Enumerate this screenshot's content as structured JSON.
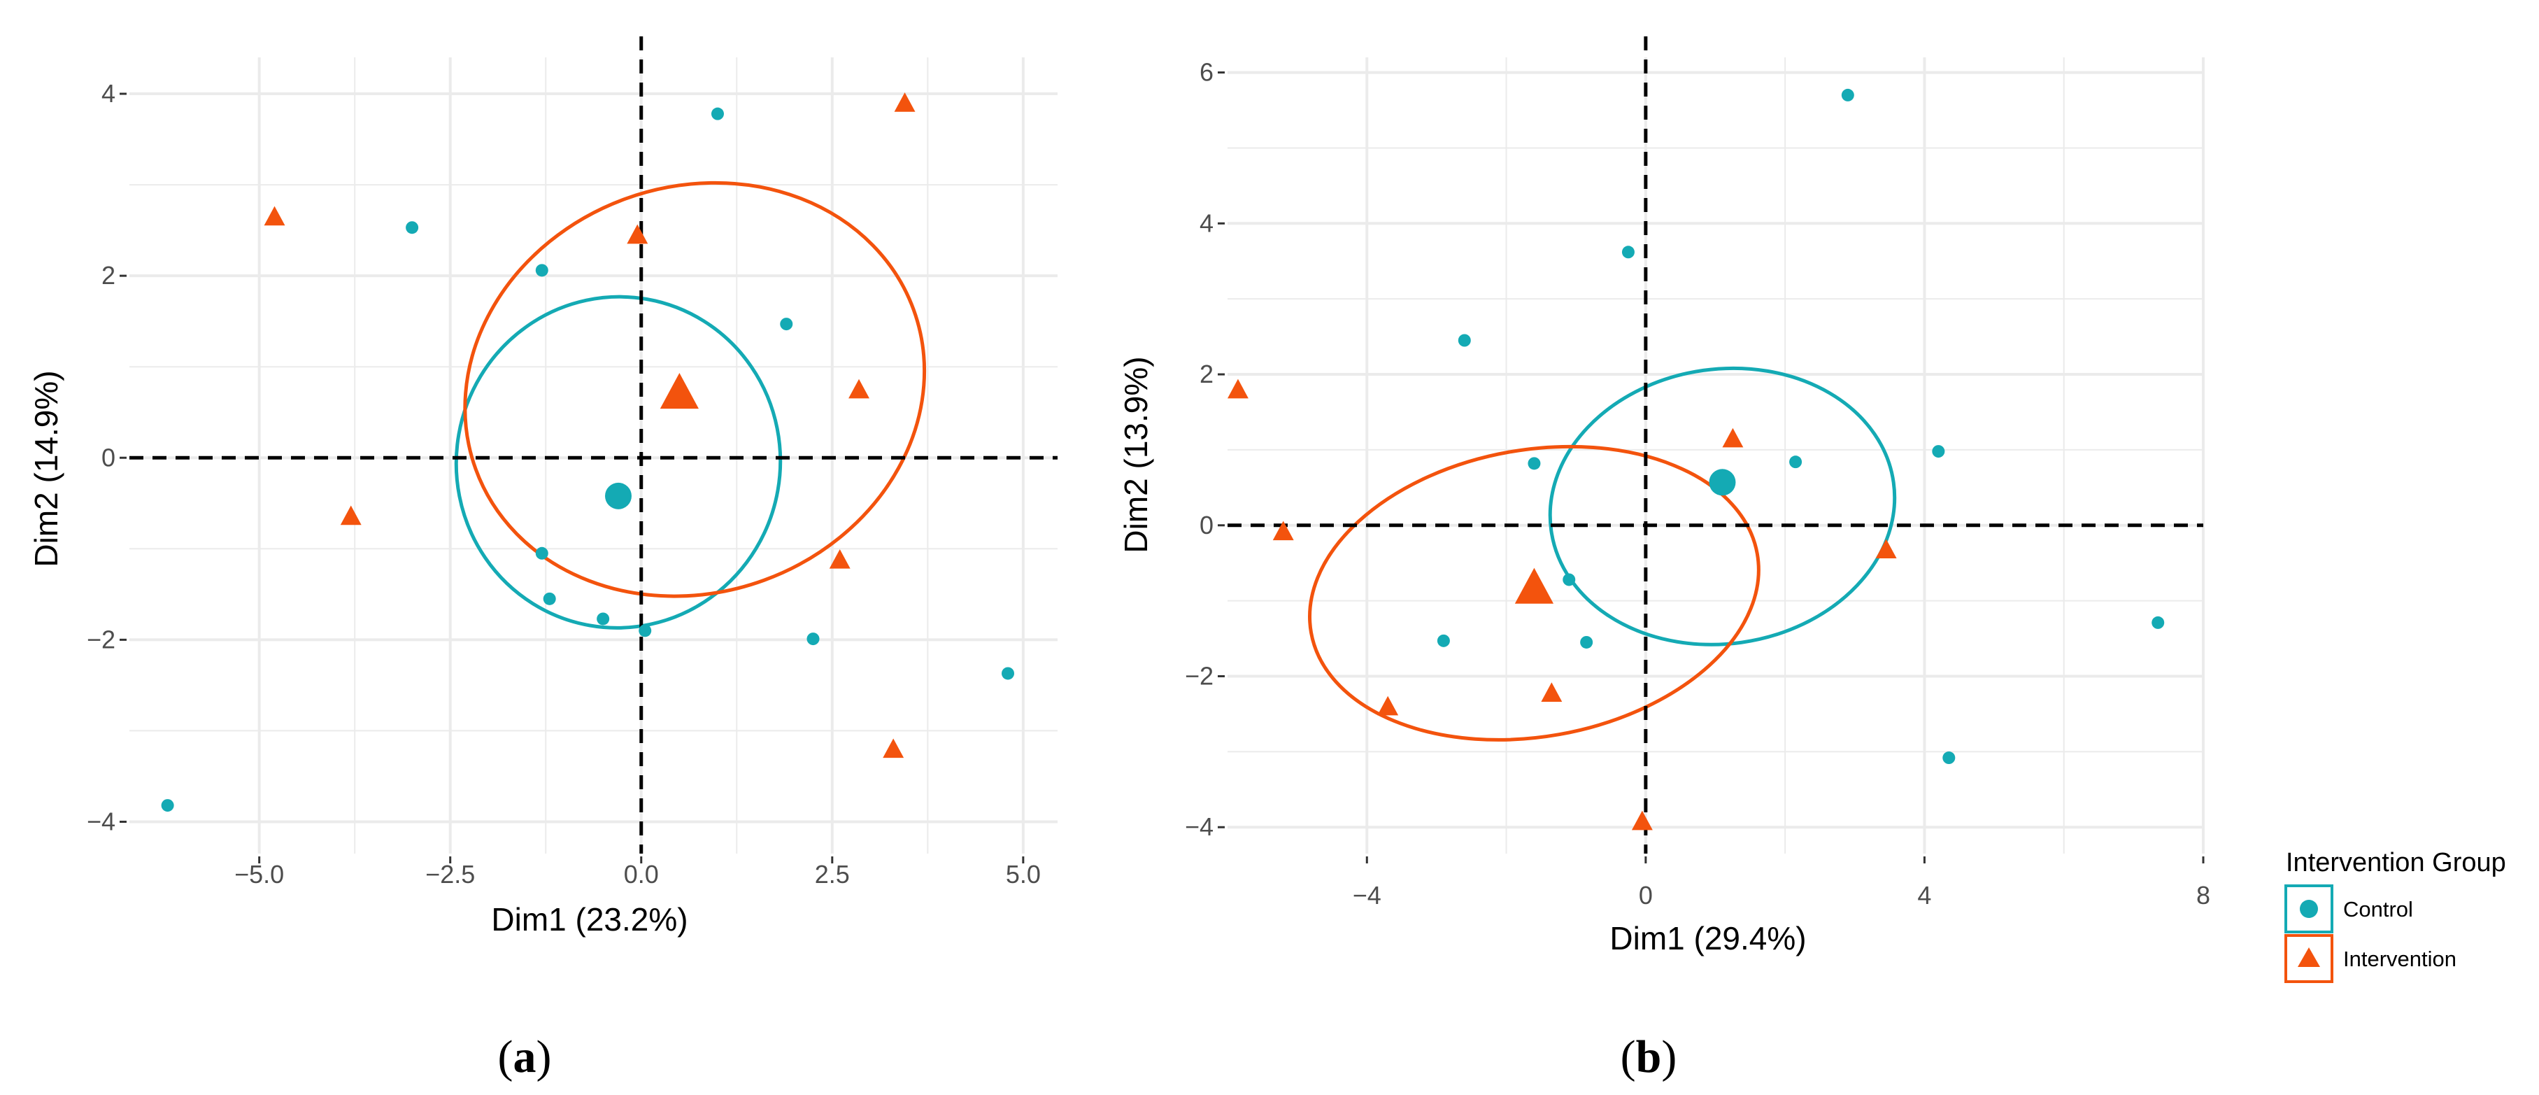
{
  "chart_data": [
    {
      "id": "a",
      "type": "scatter",
      "caption": "a",
      "xlabel": "Dim1 (23.2%)",
      "ylabel": "Dim2 (14.9%)",
      "xlim": [
        -6.7,
        5.45
      ],
      "ylim": [
        -4.35,
        4.4
      ],
      "xticks": [
        -5.0,
        -2.5,
        0.0,
        2.5,
        5.0
      ],
      "xtick_labels": [
        "−5.0",
        "−2.5",
        "0.0",
        "2.5",
        "5.0"
      ],
      "yticks": [
        -4,
        -2,
        0,
        2,
        4
      ],
      "ytick_labels": [
        "−4",
        "−2",
        "0",
        "2",
        "4"
      ],
      "grid": true,
      "reference_lines": {
        "x": 0,
        "y": 0,
        "style": "dashed"
      },
      "series": [
        {
          "name": "Control",
          "marker": "circle",
          "color": "#14aab4",
          "points": [
            [
              -6.2,
              -3.82
            ],
            [
              -3.0,
              2.53
            ],
            [
              -1.3,
              2.06
            ],
            [
              -1.3,
              -1.05
            ],
            [
              -1.2,
              -1.55
            ],
            [
              -0.5,
              -1.77
            ],
            [
              0.05,
              -1.9
            ],
            [
              1.0,
              3.78
            ],
            [
              1.9,
              1.47
            ],
            [
              2.25,
              -1.99
            ],
            [
              4.8,
              -2.37
            ]
          ],
          "centroid": [
            -0.3,
            -0.42
          ],
          "ellipse": {
            "center": [
              -0.3,
              -0.05
            ],
            "rx": 2.12,
            "ry": 1.82,
            "angle_deg": 10
          }
        },
        {
          "name": "Intervention",
          "marker": "triangle",
          "color": "#f3530d",
          "points": [
            [
              -4.8,
              2.65
            ],
            [
              -3.8,
              -0.64
            ],
            [
              -0.05,
              2.45
            ],
            [
              2.6,
              -1.12
            ],
            [
              2.85,
              0.75
            ],
            [
              3.3,
              -3.2
            ],
            [
              3.45,
              3.9
            ]
          ],
          "centroid": [
            0.5,
            0.72
          ],
          "ellipse": {
            "center": [
              0.7,
              0.75
            ],
            "rx": 3.05,
            "ry": 2.23,
            "angle_deg": -20
          }
        }
      ]
    },
    {
      "id": "b",
      "type": "scatter",
      "caption": "b",
      "xlabel": "Dim1 (29.4%)",
      "ylabel": "Dim2 (13.9%)",
      "xlim": [
        -6.0,
        8.0
      ],
      "ylim": [
        -4.35,
        6.2
      ],
      "xticks": [
        -4,
        0,
        4,
        8
      ],
      "xtick_labels": [
        "−4",
        "0",
        "4",
        "8"
      ],
      "yticks": [
        -4,
        -2,
        0,
        2,
        4,
        6
      ],
      "ytick_labels": [
        "−4",
        "−2",
        "0",
        "2",
        "4",
        "6"
      ],
      "grid": true,
      "reference_lines": {
        "x": 0,
        "y": 0,
        "style": "dashed"
      },
      "series": [
        {
          "name": "Control",
          "marker": "circle",
          "color": "#14aab4",
          "points": [
            [
              -2.6,
              2.45
            ],
            [
              -2.9,
              -1.53
            ],
            [
              -1.6,
              0.82
            ],
            [
              -1.1,
              -0.72
            ],
            [
              -0.85,
              -1.55
            ],
            [
              -0.25,
              3.62
            ],
            [
              2.15,
              0.84
            ],
            [
              2.9,
              5.7
            ],
            [
              4.2,
              0.98
            ],
            [
              4.35,
              -3.08
            ],
            [
              7.35,
              -1.29
            ]
          ],
          "centroid": [
            1.1,
            0.57
          ],
          "ellipse": {
            "center": [
              1.1,
              0.25
            ],
            "rx": 2.48,
            "ry": 1.82,
            "angle_deg": -8
          }
        },
        {
          "name": "Intervention",
          "marker": "triangle",
          "color": "#f3530d",
          "points": [
            [
              -5.85,
              1.8
            ],
            [
              -5.2,
              -0.08
            ],
            [
              -3.7,
              -2.4
            ],
            [
              -1.35,
              -2.22
            ],
            [
              -0.05,
              -3.92
            ],
            [
              1.25,
              1.15
            ],
            [
              3.45,
              -0.32
            ]
          ],
          "centroid": [
            -1.6,
            -0.82
          ],
          "ellipse": {
            "center": [
              -1.6,
              -0.9
            ],
            "rx": 3.25,
            "ry": 1.9,
            "angle_deg": -10
          }
        }
      ]
    }
  ],
  "legend": {
    "title": "Intervention Group",
    "placement": "bottom-right",
    "items": [
      {
        "label": "Control",
        "marker": "circle",
        "color": "#14aab4"
      },
      {
        "label": "Intervention",
        "marker": "triangle",
        "color": "#f3530d"
      }
    ]
  },
  "colors": {
    "grid": "#ebebeb",
    "reference_line": "#000000",
    "tick_text": "#4d4d4d"
  }
}
